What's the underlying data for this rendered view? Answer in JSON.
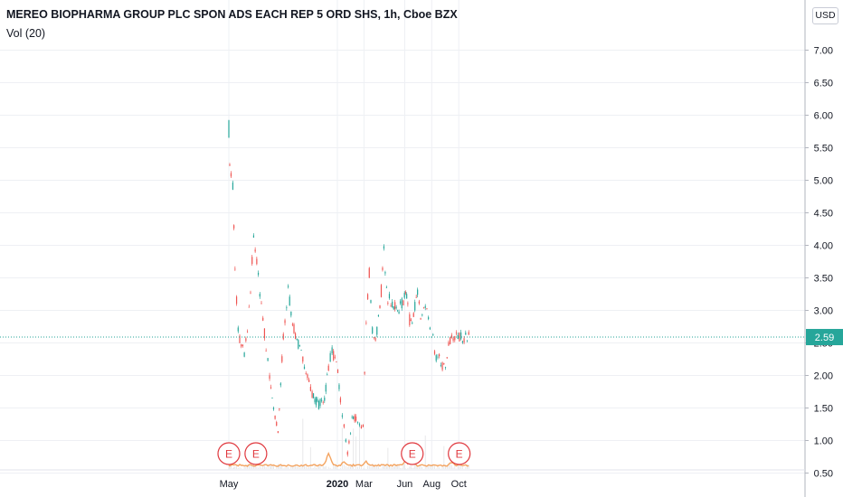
{
  "header": {
    "title": "MEREO BIOPHARMA GROUP PLC SPON ADS EACH REP 5 ORD SHS, 1h, Cboe BZX",
    "indicator": "Vol (20)",
    "currency": "USD"
  },
  "colors": {
    "up": "#26a69a",
    "down": "#ef5350",
    "volume_ma": "#f4a460",
    "grid": "#eef0f4",
    "price_badge": "#26a69a",
    "earnings": "#e0383e"
  },
  "earnings_marker": "E",
  "last_price": "2.59",
  "chart_data": {
    "type": "line",
    "title": "MEREO BIOPHARMA GROUP PLC SPON ADS EACH REP 5 ORD SHS, 1h, Cboe BZX",
    "xlabel": "",
    "ylabel": "",
    "y_axis_side": "right",
    "ylim": [
      0.4,
      7.5
    ],
    "y_ticks": [
      "7.00",
      "6.50",
      "6.00",
      "5.50",
      "5.00",
      "4.50",
      "4.00",
      "3.50",
      "3.00",
      "2.50",
      "2.00",
      "1.50",
      "1.00",
      "0.50"
    ],
    "x_ticks": [
      "May",
      "2020",
      "Mar",
      "Jun",
      "Aug",
      "Oct"
    ],
    "grid": true,
    "series": [
      {
        "x": [
          "2019-05-01",
          "2019-05-03",
          "2019-05-06",
          "2019-05-10",
          "2019-05-15",
          "2019-05-22",
          "2019-05-29",
          "2019-06-05",
          "2019-06-12",
          "2019-06-19",
          "2019-06-26",
          "2019-07-03",
          "2019-07-10",
          "2019-07-17",
          "2019-07-24",
          "2019-08-01",
          "2019-08-10",
          "2019-08-20",
          "2019-09-01",
          "2019-09-12",
          "2019-09-25",
          "2019-10-08",
          "2019-10-22",
          "2019-11-05",
          "2019-11-20",
          "2019-12-03",
          "2019-12-12",
          "2019-12-20",
          "2020-01-02",
          "2020-01-08",
          "2020-01-16",
          "2020-01-24",
          "2020-02-03",
          "2020-02-12",
          "2020-02-20",
          "2020-02-28",
          "2020-03-06",
          "2020-03-13",
          "2020-03-20",
          "2020-03-27",
          "2020-04-06",
          "2020-04-15",
          "2020-04-24",
          "2020-05-04",
          "2020-05-13",
          "2020-05-22",
          "2020-05-29",
          "2020-06-03",
          "2020-06-08",
          "2020-06-12",
          "2020-06-18",
          "2020-06-24",
          "2020-06-30",
          "2020-07-07",
          "2020-07-14",
          "2020-07-21",
          "2020-07-28",
          "2020-08-04",
          "2020-08-11",
          "2020-08-18",
          "2020-08-25",
          "2020-09-01",
          "2020-09-08",
          "2020-09-15",
          "2020-09-22",
          "2020-09-29",
          "2020-10-06",
          "2020-10-13",
          "2020-10-20",
          "2020-10-27"
        ],
        "values": [
          5.8,
          5.3,
          5.05,
          4.9,
          3.6,
          2.7,
          2.45,
          2.35,
          2.65,
          3.3,
          4.2,
          3.7,
          3.3,
          2.9,
          2.4,
          2.0,
          1.5,
          1.1,
          2.6,
          3.3,
          2.7,
          2.4,
          2.1,
          1.7,
          1.55,
          1.65,
          2.15,
          2.4,
          2.05,
          1.6,
          1.2,
          0.8,
          1.3,
          1.35,
          1.2,
          1.25,
          2.8,
          3.6,
          2.7,
          2.55,
          3.0,
          3.9,
          3.2,
          3.1,
          3.0,
          3.05,
          3.15,
          3.35,
          3.1,
          2.85,
          2.9,
          3.05,
          3.25,
          2.85,
          3.05,
          3.0,
          2.65,
          2.55,
          2.25,
          2.25,
          2.15,
          2.1,
          2.45,
          2.59,
          2.59,
          2.59,
          2.59,
          2.59,
          2.59,
          2.59
        ]
      }
    ],
    "earnings_dates": [
      "2019-05-01",
      "2019-07-01",
      "2020-06-18",
      "2020-10-02"
    ]
  }
}
